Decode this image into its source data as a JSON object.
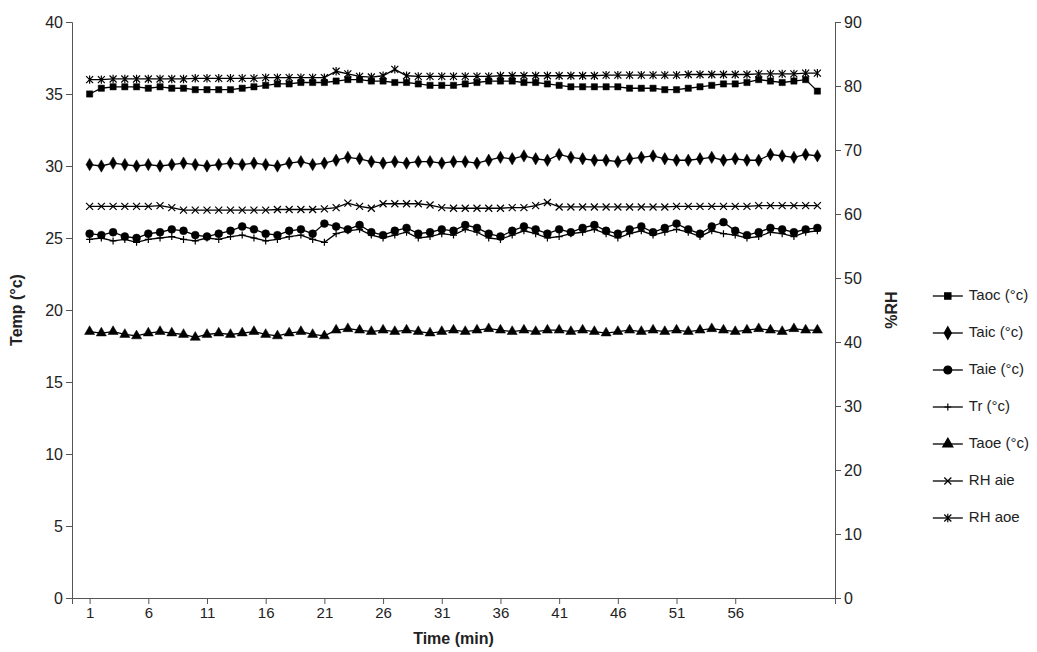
{
  "chart_data": {
    "type": "line",
    "x_label": "Time (min)",
    "y_label": "Temp (°c)",
    "y2_label": "%RH",
    "x": [
      1,
      2,
      3,
      4,
      5,
      6,
      7,
      8,
      9,
      10,
      11,
      12,
      13,
      14,
      15,
      16,
      17,
      18,
      19,
      20,
      21,
      22,
      23,
      24,
      25,
      26,
      27,
      28,
      29,
      30,
      31,
      32,
      33,
      34,
      35,
      36,
      37,
      38,
      39,
      40,
      41,
      42,
      43,
      44,
      45,
      46,
      47,
      48,
      49,
      50,
      51,
      52,
      53,
      54,
      55,
      56,
      57,
      58,
      59,
      60,
      61,
      62,
      63
    ],
    "xlim": [
      -0.5,
      64.5
    ],
    "xticks": [
      1,
      6,
      11,
      16,
      21,
      26,
      31,
      36,
      41,
      46,
      51,
      56
    ],
    "ylim": [
      0,
      40
    ],
    "yticks": [
      0,
      5,
      10,
      15,
      20,
      25,
      30,
      35,
      40
    ],
    "y2lim": [
      0,
      90
    ],
    "y2ticks": [
      0,
      10,
      20,
      30,
      40,
      50,
      60,
      70,
      80,
      90
    ],
    "legend": "right",
    "grid": false,
    "series": [
      {
        "name": "Taoc (°c)",
        "color": "#000000",
        "marker": "square",
        "line_style": "solid",
        "values": [
          35.0,
          35.4,
          35.5,
          35.5,
          35.5,
          35.4,
          35.5,
          35.4,
          35.4,
          35.3,
          35.3,
          35.3,
          35.3,
          35.4,
          35.5,
          35.6,
          35.7,
          35.7,
          35.8,
          35.8,
          35.8,
          35.9,
          36.0,
          36.0,
          35.9,
          35.9,
          35.8,
          35.8,
          35.7,
          35.6,
          35.6,
          35.6,
          35.7,
          35.8,
          35.9,
          35.9,
          35.9,
          35.8,
          35.8,
          35.7,
          35.6,
          35.5,
          35.5,
          35.5,
          35.5,
          35.5,
          35.4,
          35.4,
          35.4,
          35.3,
          35.3,
          35.4,
          35.5,
          35.6,
          35.7,
          35.7,
          35.8,
          36.0,
          35.9,
          35.8,
          35.9,
          36.0,
          35.2
        ]
      },
      {
        "name": "Taic (°c)",
        "color": "#000000",
        "marker": "diamond",
        "line_style": "solid",
        "values": [
          30.1,
          30.0,
          30.2,
          30.1,
          30.0,
          30.1,
          30.0,
          30.1,
          30.2,
          30.1,
          30.0,
          30.1,
          30.2,
          30.1,
          30.2,
          30.1,
          30.0,
          30.2,
          30.3,
          30.1,
          30.2,
          30.4,
          30.6,
          30.5,
          30.3,
          30.2,
          30.3,
          30.2,
          30.3,
          30.3,
          30.2,
          30.3,
          30.3,
          30.2,
          30.4,
          30.6,
          30.5,
          30.7,
          30.5,
          30.4,
          30.8,
          30.6,
          30.5,
          30.4,
          30.4,
          30.3,
          30.5,
          30.6,
          30.7,
          30.5,
          30.4,
          30.4,
          30.5,
          30.6,
          30.4,
          30.5,
          30.4,
          30.4,
          30.8,
          30.7,
          30.6,
          30.8,
          30.7
        ]
      },
      {
        "name": "Taie (°c)",
        "color": "#000000",
        "marker": "circle",
        "line_style": "solid",
        "values": [
          25.3,
          25.2,
          25.4,
          25.1,
          25.0,
          25.3,
          25.4,
          25.6,
          25.5,
          25.2,
          25.1,
          25.3,
          25.5,
          25.8,
          25.6,
          25.3,
          25.2,
          25.5,
          25.6,
          25.3,
          26.0,
          25.8,
          25.6,
          25.9,
          25.4,
          25.2,
          25.5,
          25.7,
          25.3,
          25.4,
          25.6,
          25.5,
          25.9,
          25.7,
          25.3,
          25.1,
          25.5,
          25.8,
          25.6,
          25.3,
          25.6,
          25.4,
          25.7,
          25.9,
          25.5,
          25.3,
          25.6,
          25.8,
          25.4,
          25.7,
          26.0,
          25.6,
          25.3,
          25.8,
          26.1,
          25.5,
          25.2,
          25.4,
          25.7,
          25.6,
          25.4,
          25.6,
          25.7
        ]
      },
      {
        "name": "Tr (°c)",
        "color": "#000000",
        "marker": "plus",
        "line_style": "solid",
        "values": [
          24.9,
          25.0,
          24.8,
          24.9,
          24.7,
          24.9,
          25.0,
          25.1,
          24.9,
          24.8,
          25.0,
          24.9,
          25.1,
          25.2,
          25.0,
          24.8,
          24.9,
          25.1,
          25.2,
          24.9,
          24.7,
          25.3,
          25.5,
          25.6,
          25.2,
          25.0,
          25.2,
          25.4,
          25.0,
          25.1,
          25.3,
          25.2,
          25.6,
          25.4,
          25.0,
          24.9,
          25.2,
          25.5,
          25.3,
          25.0,
          25.1,
          25.3,
          25.4,
          25.6,
          25.3,
          25.0,
          25.3,
          25.5,
          25.2,
          25.4,
          25.6,
          25.4,
          25.1,
          25.5,
          25.3,
          25.2,
          25.0,
          25.1,
          25.4,
          25.3,
          25.1,
          25.4,
          25.5
        ]
      },
      {
        "name": "Taoe (°c)",
        "color": "#000000",
        "marker": "triangle",
        "line_style": "solid",
        "values": [
          18.5,
          18.4,
          18.5,
          18.3,
          18.2,
          18.4,
          18.5,
          18.4,
          18.3,
          18.1,
          18.3,
          18.4,
          18.3,
          18.4,
          18.5,
          18.3,
          18.2,
          18.4,
          18.5,
          18.3,
          18.2,
          18.6,
          18.7,
          18.6,
          18.5,
          18.6,
          18.5,
          18.6,
          18.5,
          18.4,
          18.5,
          18.6,
          18.5,
          18.6,
          18.7,
          18.6,
          18.5,
          18.6,
          18.5,
          18.6,
          18.6,
          18.5,
          18.6,
          18.5,
          18.4,
          18.5,
          18.6,
          18.5,
          18.6,
          18.5,
          18.6,
          18.5,
          18.6,
          18.7,
          18.6,
          18.5,
          18.6,
          18.7,
          18.6,
          18.5,
          18.7,
          18.6,
          18.6
        ]
      },
      {
        "name": "RH aie",
        "color": "#000000",
        "marker": "x",
        "line_style": "solid",
        "axis": "y2",
        "values": [
          61.2,
          61.2,
          61.2,
          61.2,
          61.2,
          61.2,
          61.3,
          61.0,
          60.6,
          60.6,
          60.6,
          60.6,
          60.6,
          60.6,
          60.6,
          60.6,
          60.7,
          60.7,
          60.7,
          60.7,
          60.8,
          61.0,
          61.7,
          61.2,
          60.9,
          61.6,
          61.6,
          61.6,
          61.6,
          61.4,
          61.0,
          60.9,
          60.9,
          60.9,
          60.9,
          60.9,
          61.0,
          61.0,
          61.3,
          61.8,
          61.1,
          61.1,
          61.1,
          61.1,
          61.1,
          61.1,
          61.1,
          61.1,
          61.1,
          61.1,
          61.2,
          61.2,
          61.2,
          61.2,
          61.2,
          61.2,
          61.2,
          61.3,
          61.3,
          61.3,
          61.3,
          61.3,
          61.3
        ]
      },
      {
        "name": "RH aoe",
        "color": "#000000",
        "marker": "asterisk",
        "line_style": "solid",
        "axis": "y2",
        "values": [
          81.0,
          81.0,
          81.1,
          81.1,
          81.1,
          81.1,
          81.1,
          81.1,
          81.1,
          81.2,
          81.2,
          81.2,
          81.2,
          81.2,
          81.2,
          81.3,
          81.3,
          81.3,
          81.3,
          81.3,
          81.3,
          82.3,
          81.9,
          81.5,
          81.4,
          81.6,
          82.6,
          81.6,
          81.5,
          81.5,
          81.5,
          81.5,
          81.5,
          81.5,
          81.5,
          81.6,
          81.6,
          81.6,
          81.6,
          81.6,
          81.6,
          81.6,
          81.6,
          81.6,
          81.7,
          81.7,
          81.7,
          81.7,
          81.7,
          81.7,
          81.7,
          81.8,
          81.8,
          81.8,
          81.8,
          81.8,
          81.8,
          81.9,
          81.9,
          81.9,
          81.9,
          82.0,
          82.0
        ]
      }
    ]
  }
}
